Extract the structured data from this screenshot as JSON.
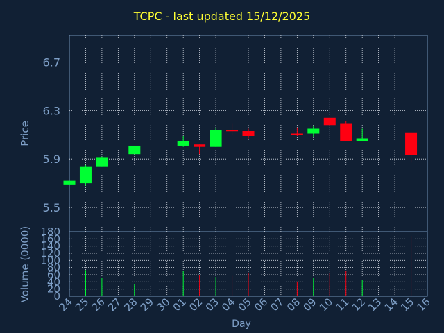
{
  "colors": {
    "background": "#112034",
    "panel_border": "#6f8fb3",
    "grid": "#d8dde6",
    "axis_text": "#7fa0c8",
    "title": "#ffff33",
    "up": "#00ff33",
    "down": "#ff0011"
  },
  "chart_data": {
    "type": "candlestick",
    "title": "TCPC - last updated 15/12/2025",
    "price_axis": {
      "label": "Price",
      "ylim": [
        5.3,
        6.92
      ],
      "ticks": [
        "5.5",
        "5.9",
        "6.3",
        "6.7"
      ],
      "grid": true
    },
    "volume_axis": {
      "label": "Volume (0000)",
      "ylim": [
        0,
        180
      ],
      "ticks": [
        "0",
        "20",
        "40",
        "60",
        "80",
        "100",
        "120",
        "140",
        "160",
        "180"
      ],
      "grid": true
    },
    "x_axis": {
      "label": "Day",
      "ticks": [
        "24",
        "25",
        "26",
        "27",
        "28",
        "29",
        "30",
        "01",
        "02",
        "03",
        "04",
        "05",
        "06",
        "07",
        "08",
        "09",
        "10",
        "11",
        "12",
        "13",
        "14",
        "15",
        "16"
      ]
    },
    "candles": [
      {
        "day": "24",
        "open": 5.69,
        "high": 5.72,
        "low": 5.69,
        "close": 5.72,
        "volume": 0
      },
      {
        "day": "25",
        "open": 5.7,
        "high": 5.85,
        "low": 5.68,
        "close": 5.84,
        "volume": 73
      },
      {
        "day": "26",
        "open": 5.84,
        "high": 5.92,
        "low": 5.84,
        "close": 5.91,
        "volume": 52
      },
      {
        "day": "28",
        "open": 5.94,
        "high": 6.01,
        "low": 5.94,
        "close": 6.01,
        "volume": 33
      },
      {
        "day": "01",
        "open": 6.01,
        "high": 6.09,
        "low": 6.0,
        "close": 6.05,
        "volume": 70
      },
      {
        "day": "02",
        "open": 6.02,
        "high": 6.02,
        "low": 5.94,
        "close": 6.0,
        "volume": 60
      },
      {
        "day": "03",
        "open": 6.0,
        "high": 6.16,
        "low": 6.0,
        "close": 6.14,
        "volume": 54
      },
      {
        "day": "04",
        "open": 6.14,
        "high": 6.19,
        "low": 6.1,
        "close": 6.13,
        "volume": 57
      },
      {
        "day": "05",
        "open": 6.13,
        "high": 6.15,
        "low": 6.07,
        "close": 6.09,
        "volume": 66
      },
      {
        "day": "08",
        "open": 6.11,
        "high": 6.16,
        "low": 6.09,
        "close": 6.1,
        "volume": 41
      },
      {
        "day": "09",
        "open": 6.11,
        "high": 6.17,
        "low": 6.08,
        "close": 6.15,
        "volume": 52
      },
      {
        "day": "10",
        "open": 6.24,
        "high": 6.24,
        "low": 6.18,
        "close": 6.18,
        "volume": 64
      },
      {
        "day": "11",
        "open": 6.19,
        "high": 6.21,
        "low": 6.05,
        "close": 6.05,
        "volume": 70
      },
      {
        "day": "12",
        "open": 6.05,
        "high": 6.15,
        "low": 6.05,
        "close": 6.07,
        "volume": 45
      },
      {
        "day": "15",
        "open": 6.12,
        "high": 6.12,
        "low": 5.87,
        "close": 5.93,
        "volume": 168
      }
    ]
  }
}
